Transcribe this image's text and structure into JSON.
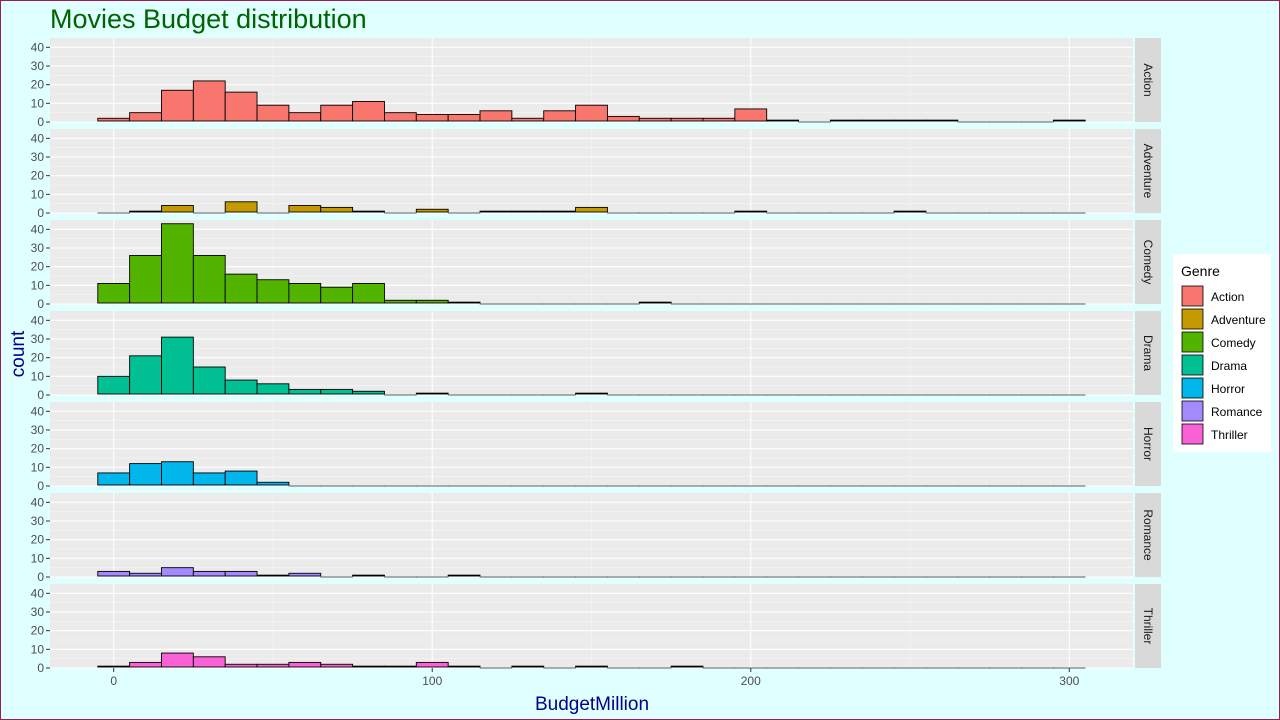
{
  "chart_data": {
    "type": "bar",
    "subtype": "faceted-histogram",
    "title": "Movies Budget distribution",
    "xlabel": "BudgetMillion",
    "ylabel": "count",
    "xlim": [
      -20,
      320
    ],
    "ylim": [
      0,
      45
    ],
    "x_ticks": [
      0,
      100,
      200,
      300
    ],
    "y_ticks": [
      0,
      10,
      20,
      30,
      40
    ],
    "bin_width": 10,
    "bin_starts": [
      -5,
      5,
      15,
      25,
      35,
      45,
      55,
      65,
      75,
      85,
      95,
      105,
      115,
      125,
      135,
      145,
      155,
      165,
      175,
      185,
      195,
      205,
      215,
      225,
      235,
      245,
      255,
      265,
      275,
      285,
      295
    ],
    "grid": true,
    "legend": {
      "title": "Genre",
      "placement": "right"
    },
    "series": [
      {
        "name": "Action",
        "color": "#f8766d",
        "values": [
          2,
          5,
          17,
          22,
          16,
          9,
          5,
          9,
          11,
          5,
          4,
          4,
          6,
          2,
          6,
          9,
          3,
          2,
          2,
          2,
          7,
          1,
          0,
          1,
          1,
          1,
          1,
          0,
          0,
          0,
          1
        ]
      },
      {
        "name": "Adventure",
        "color": "#c49a00",
        "values": [
          0,
          1,
          4,
          0,
          6,
          0,
          4,
          3,
          1,
          0,
          2,
          0,
          1,
          1,
          1,
          3,
          0,
          0,
          0,
          0,
          1,
          0,
          0,
          0,
          0,
          1,
          0,
          0,
          0,
          0,
          0
        ]
      },
      {
        "name": "Comedy",
        "color": "#53b400",
        "values": [
          11,
          26,
          43,
          26,
          16,
          13,
          11,
          9,
          11,
          2,
          2,
          1,
          0,
          0,
          0,
          0,
          0,
          1,
          0,
          0,
          0,
          0,
          0,
          0,
          0,
          0,
          0,
          0,
          0,
          0,
          0
        ]
      },
      {
        "name": "Drama",
        "color": "#00c094",
        "values": [
          10,
          21,
          31,
          15,
          8,
          6,
          3,
          3,
          2,
          0,
          1,
          0,
          0,
          0,
          0,
          1,
          0,
          0,
          0,
          0,
          0,
          0,
          0,
          0,
          0,
          0,
          0,
          0,
          0,
          0,
          0
        ]
      },
      {
        "name": "Horror",
        "color": "#00b6eb",
        "values": [
          7,
          12,
          13,
          7,
          8,
          2,
          0,
          0,
          0,
          0,
          0,
          0,
          0,
          0,
          0,
          0,
          0,
          0,
          0,
          0,
          0,
          0,
          0,
          0,
          0,
          0,
          0,
          0,
          0,
          0,
          0
        ]
      },
      {
        "name": "Romance",
        "color": "#a58aff",
        "values": [
          3,
          2,
          5,
          3,
          3,
          1,
          2,
          0,
          1,
          0,
          0,
          1,
          0,
          0,
          0,
          0,
          0,
          0,
          0,
          0,
          0,
          0,
          0,
          0,
          0,
          0,
          0,
          0,
          0,
          0,
          0
        ]
      },
      {
        "name": "Thriller",
        "color": "#fb61d7",
        "values": [
          1,
          3,
          8,
          6,
          2,
          2,
          3,
          2,
          1,
          1,
          3,
          1,
          0,
          1,
          0,
          1,
          0,
          0,
          1,
          0,
          0,
          0,
          0,
          0,
          0,
          0,
          0,
          0,
          0,
          0,
          0
        ]
      }
    ]
  }
}
